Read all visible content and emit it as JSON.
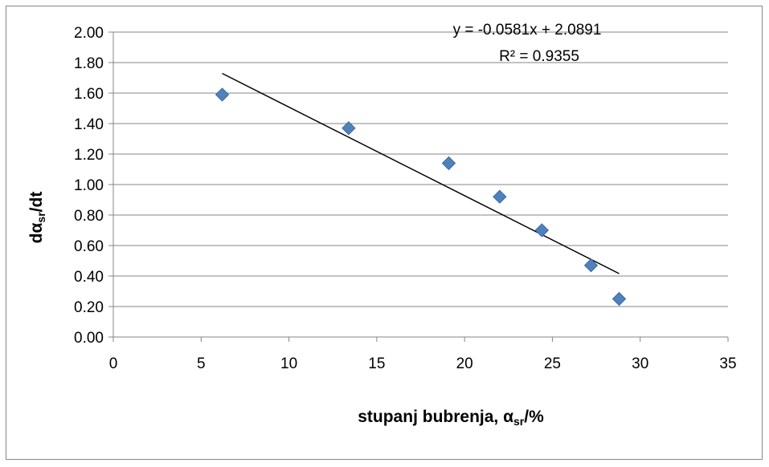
{
  "chart_data": {
    "type": "scatter",
    "x": [
      6.2,
      13.4,
      19.1,
      22.0,
      24.4,
      27.2,
      28.8
    ],
    "y": [
      1.59,
      1.37,
      1.14,
      0.92,
      0.7,
      0.47,
      0.25
    ],
    "xlim": [
      0,
      35
    ],
    "ylim": [
      0,
      2
    ],
    "x_ticks": [
      "0",
      "5",
      "10",
      "15",
      "20",
      "25",
      "30",
      "35"
    ],
    "y_ticks": [
      "0.00",
      "0.20",
      "0.40",
      "0.60",
      "0.80",
      "1.00",
      "1.20",
      "1.40",
      "1.60",
      "1.80",
      "2.00"
    ],
    "xlabel": {
      "main": "stupanj bubrenja, α",
      "sub": "sr",
      "tail": "/%"
    },
    "ylabel": {
      "main": "dα",
      "sub": "sr",
      "tail": "/dt"
    },
    "trendline": {
      "slope": -0.0581,
      "intercept": 2.0891,
      "x_range": [
        6.2,
        28.8
      ],
      "equation": "y = -0.0581x + 2.0891",
      "r_squared": "R² = 0.9355"
    },
    "grid": {
      "horizontal": true,
      "vertical": false
    },
    "marker": "diamond",
    "colors": {
      "marker": "#4F81BD",
      "marker_edge": "#3B6AA6",
      "trendline": "#000000",
      "grid": "#868686"
    }
  }
}
